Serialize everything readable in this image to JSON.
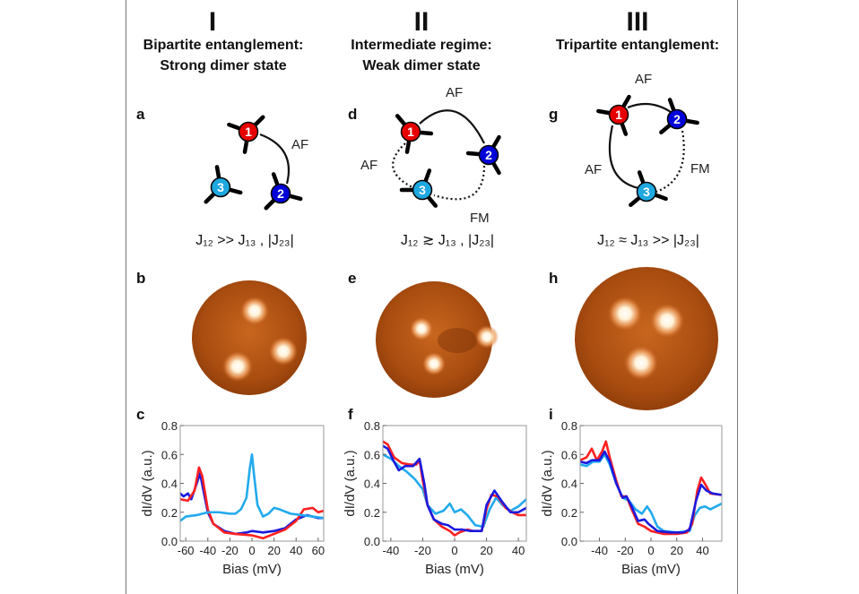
{
  "columns": [
    {
      "numeral": "I",
      "title_line1": "Bipartite entanglement:",
      "title_line2": "Strong dimer state",
      "equation": "J₁₂ >> J₁₃ , |J₂₃|",
      "panels": {
        "diagram": "a",
        "image": "b",
        "plot": "c"
      },
      "bond_labels": [
        "AF"
      ]
    },
    {
      "numeral": "II",
      "title_line1": "Intermediate regime:",
      "title_line2": "Weak dimer state",
      "equation": "J₁₂ ≳ J₁₃ , |J₂₃|",
      "panels": {
        "diagram": "d",
        "image": "e",
        "plot": "f"
      },
      "bond_labels": [
        "AF",
        "AF",
        "FM"
      ]
    },
    {
      "numeral": "III",
      "title_line1": "Tripartite entanglement:",
      "title_line2": "",
      "equation": "J₁₂ ≈ J₁₃ >> |J₂₃|",
      "panels": {
        "diagram": "g",
        "image": "h",
        "plot": "i"
      },
      "bond_labels": [
        "AF",
        "AF",
        "FM"
      ]
    }
  ],
  "atom_labels": [
    "1",
    "2",
    "3"
  ],
  "colors": {
    "atom1": "#e60000",
    "atom2": "#0000d8",
    "atom3": "#1ea8e0",
    "stm_dark": "#8a3a08",
    "stm_light": "#f0a060"
  },
  "chart_data": [
    {
      "type": "line",
      "panel": "c",
      "xlabel": "Bias (mV)",
      "ylabel": "dI/dV (a.u.)",
      "xlim": [
        -65,
        65
      ],
      "ylim": [
        0,
        0.8
      ],
      "xticks": [
        -60,
        -40,
        -20,
        0,
        20,
        40,
        60
      ],
      "yticks": [
        "0.0",
        "0.2",
        "0.4",
        "0.6",
        "0.8"
      ],
      "series": [
        {
          "color": "#1a1ae0",
          "points": [
            [
              -65,
              0.33
            ],
            [
              -62,
              0.31
            ],
            [
              -58,
              0.33
            ],
            [
              -55,
              0.29
            ],
            [
              -50,
              0.4
            ],
            [
              -47,
              0.47
            ],
            [
              -44,
              0.35
            ],
            [
              -40,
              0.2
            ],
            [
              -35,
              0.12
            ],
            [
              -25,
              0.07
            ],
            [
              -15,
              0.05
            ],
            [
              -5,
              0.06
            ],
            [
              0,
              0.07
            ],
            [
              10,
              0.06
            ],
            [
              20,
              0.07
            ],
            [
              30,
              0.09
            ],
            [
              40,
              0.15
            ],
            [
              50,
              0.18
            ],
            [
              60,
              0.16
            ],
            [
              65,
              0.16
            ]
          ]
        },
        {
          "color": "#ff2020",
          "points": [
            [
              -65,
              0.29
            ],
            [
              -58,
              0.28
            ],
            [
              -52,
              0.35
            ],
            [
              -48,
              0.51
            ],
            [
              -45,
              0.45
            ],
            [
              -40,
              0.22
            ],
            [
              -35,
              0.12
            ],
            [
              -25,
              0.06
            ],
            [
              -15,
              0.05
            ],
            [
              0,
              0.04
            ],
            [
              10,
              0.02
            ],
            [
              20,
              0.05
            ],
            [
              30,
              0.08
            ],
            [
              40,
              0.14
            ],
            [
              47,
              0.22
            ],
            [
              55,
              0.23
            ],
            [
              60,
              0.2
            ],
            [
              65,
              0.21
            ]
          ]
        },
        {
          "color": "#22aaee",
          "points": [
            [
              -65,
              0.14
            ],
            [
              -60,
              0.17
            ],
            [
              -50,
              0.18
            ],
            [
              -40,
              0.2
            ],
            [
              -30,
              0.2
            ],
            [
              -20,
              0.19
            ],
            [
              -15,
              0.19
            ],
            [
              -10,
              0.22
            ],
            [
              -5,
              0.3
            ],
            [
              -2,
              0.5
            ],
            [
              0,
              0.6
            ],
            [
              2,
              0.45
            ],
            [
              5,
              0.25
            ],
            [
              10,
              0.17
            ],
            [
              15,
              0.19
            ],
            [
              20,
              0.23
            ],
            [
              25,
              0.22
            ],
            [
              35,
              0.19
            ],
            [
              45,
              0.18
            ],
            [
              55,
              0.17
            ],
            [
              65,
              0.16
            ]
          ]
        }
      ]
    },
    {
      "type": "line",
      "panel": "f",
      "xlabel": "Bias (mV)",
      "ylabel": "dI/dV (a.u.)",
      "xlim": [
        -45,
        45
      ],
      "ylim": [
        0,
        0.8
      ],
      "xticks": [
        -40,
        -20,
        0,
        20,
        40
      ],
      "yticks": [
        "0.0",
        "0.2",
        "0.4",
        "0.6",
        "0.8"
      ],
      "series": [
        {
          "color": "#22aaee",
          "points": [
            [
              -45,
              0.6
            ],
            [
              -40,
              0.57
            ],
            [
              -35,
              0.52
            ],
            [
              -30,
              0.48
            ],
            [
              -25,
              0.43
            ],
            [
              -20,
              0.36
            ],
            [
              -17,
              0.25
            ],
            [
              -12,
              0.19
            ],
            [
              -7,
              0.21
            ],
            [
              -3,
              0.26
            ],
            [
              0,
              0.2
            ],
            [
              4,
              0.22
            ],
            [
              8,
              0.18
            ],
            [
              13,
              0.11
            ],
            [
              18,
              0.1
            ],
            [
              22,
              0.22
            ],
            [
              26,
              0.3
            ],
            [
              30,
              0.25
            ],
            [
              35,
              0.21
            ],
            [
              40,
              0.24
            ],
            [
              45,
              0.29
            ]
          ]
        },
        {
          "color": "#ff2020",
          "points": [
            [
              -45,
              0.69
            ],
            [
              -42,
              0.67
            ],
            [
              -38,
              0.58
            ],
            [
              -33,
              0.54
            ],
            [
              -28,
              0.53
            ],
            [
              -24,
              0.53
            ],
            [
              -22,
              0.56
            ],
            [
              -20,
              0.42
            ],
            [
              -17,
              0.25
            ],
            [
              -13,
              0.15
            ],
            [
              -8,
              0.1
            ],
            [
              -3,
              0.07
            ],
            [
              0,
              0.04
            ],
            [
              3,
              0.06
            ],
            [
              8,
              0.08
            ],
            [
              12,
              0.07
            ],
            [
              17,
              0.07
            ],
            [
              20,
              0.22
            ],
            [
              23,
              0.32
            ],
            [
              27,
              0.31
            ],
            [
              32,
              0.23
            ],
            [
              36,
              0.2
            ],
            [
              40,
              0.18
            ],
            [
              45,
              0.18
            ]
          ]
        },
        {
          "color": "#1a1ae0",
          "points": [
            [
              -45,
              0.66
            ],
            [
              -42,
              0.64
            ],
            [
              -38,
              0.55
            ],
            [
              -35,
              0.49
            ],
            [
              -31,
              0.52
            ],
            [
              -26,
              0.52
            ],
            [
              -22,
              0.57
            ],
            [
              -19,
              0.4
            ],
            [
              -17,
              0.25
            ],
            [
              -13,
              0.15
            ],
            [
              -8,
              0.12
            ],
            [
              -4,
              0.11
            ],
            [
              0,
              0.08
            ],
            [
              5,
              0.08
            ],
            [
              10,
              0.07
            ],
            [
              17,
              0.07
            ],
            [
              20,
              0.25
            ],
            [
              25,
              0.35
            ],
            [
              30,
              0.27
            ],
            [
              35,
              0.2
            ],
            [
              40,
              0.2
            ],
            [
              45,
              0.23
            ]
          ]
        }
      ]
    },
    {
      "type": "line",
      "panel": "i",
      "xlabel": "Bias (mV)",
      "ylabel": "dI/dV (a.u.)",
      "xlim": [
        -55,
        55
      ],
      "ylim": [
        0,
        0.8
      ],
      "xticks": [
        -40,
        -20,
        0,
        20,
        40
      ],
      "yticks": [
        "0.0",
        "0.2",
        "0.4",
        "0.6",
        "0.8"
      ],
      "series": [
        {
          "color": "#22aaee",
          "points": [
            [
              -55,
              0.53
            ],
            [
              -50,
              0.52
            ],
            [
              -45,
              0.55
            ],
            [
              -40,
              0.55
            ],
            [
              -36,
              0.6
            ],
            [
              -32,
              0.53
            ],
            [
              -27,
              0.4
            ],
            [
              -22,
              0.3
            ],
            [
              -17,
              0.28
            ],
            [
              -12,
              0.22
            ],
            [
              -7,
              0.19
            ],
            [
              -3,
              0.24
            ],
            [
              0,
              0.2
            ],
            [
              5,
              0.1
            ],
            [
              10,
              0.07
            ],
            [
              20,
              0.06
            ],
            [
              30,
              0.07
            ],
            [
              34,
              0.18
            ],
            [
              38,
              0.23
            ],
            [
              42,
              0.24
            ],
            [
              46,
              0.22
            ],
            [
              55,
              0.26
            ]
          ]
        },
        {
          "color": "#ff2020",
          "points": [
            [
              -55,
              0.56
            ],
            [
              -50,
              0.58
            ],
            [
              -46,
              0.64
            ],
            [
              -42,
              0.56
            ],
            [
              -38,
              0.62
            ],
            [
              -35,
              0.69
            ],
            [
              -32,
              0.58
            ],
            [
              -27,
              0.42
            ],
            [
              -23,
              0.31
            ],
            [
              -19,
              0.31
            ],
            [
              -15,
              0.22
            ],
            [
              -10,
              0.12
            ],
            [
              -5,
              0.1
            ],
            [
              0,
              0.07
            ],
            [
              10,
              0.05
            ],
            [
              20,
              0.05
            ],
            [
              28,
              0.06
            ],
            [
              32,
              0.12
            ],
            [
              36,
              0.35
            ],
            [
              39,
              0.44
            ],
            [
              43,
              0.38
            ],
            [
              46,
              0.33
            ],
            [
              55,
              0.32
            ]
          ]
        },
        {
          "color": "#1a1ae0",
          "points": [
            [
              -55,
              0.55
            ],
            [
              -50,
              0.54
            ],
            [
              -46,
              0.56
            ],
            [
              -40,
              0.56
            ],
            [
              -36,
              0.62
            ],
            [
              -32,
              0.55
            ],
            [
              -27,
              0.4
            ],
            [
              -22,
              0.3
            ],
            [
              -19,
              0.31
            ],
            [
              -15,
              0.24
            ],
            [
              -10,
              0.14
            ],
            [
              -5,
              0.15
            ],
            [
              -2,
              0.12
            ],
            [
              5,
              0.07
            ],
            [
              15,
              0.06
            ],
            [
              25,
              0.06
            ],
            [
              30,
              0.08
            ],
            [
              35,
              0.28
            ],
            [
              39,
              0.39
            ],
            [
              43,
              0.35
            ],
            [
              48,
              0.33
            ],
            [
              55,
              0.32
            ]
          ]
        }
      ]
    }
  ]
}
